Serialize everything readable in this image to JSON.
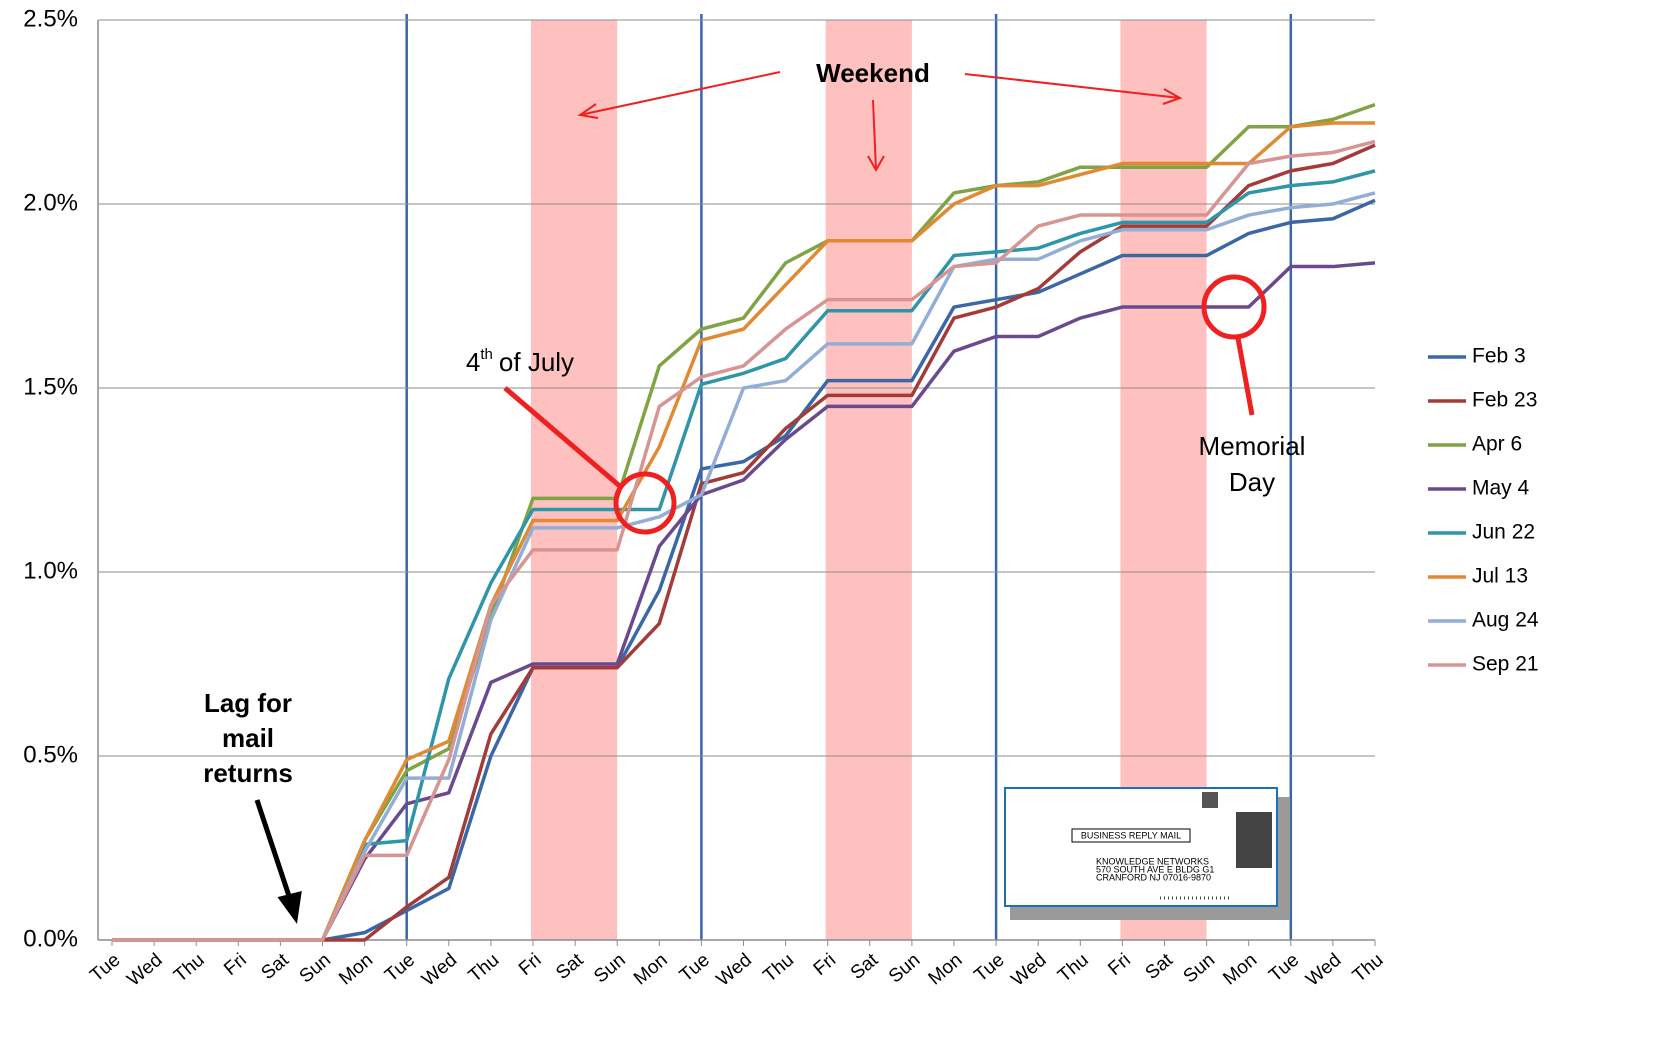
{
  "chart_data": {
    "type": "line",
    "categories": [
      "Tue",
      "Wed",
      "Thu",
      "Fri",
      "Sat",
      "Sun",
      "Mon",
      "Tue",
      "Wed",
      "Thu",
      "Fri",
      "Sat",
      "Sun",
      "Mon",
      "Tue",
      "Wed",
      "Thu",
      "Fri",
      "Sat",
      "Sun",
      "Mon",
      "Tue",
      "Wed",
      "Thu",
      "Fri",
      "Sat",
      "Sun",
      "Mon",
      "Tue",
      "Wed",
      "Thu"
    ],
    "ylim": [
      0,
      2.5
    ],
    "yticks": [
      {
        "value": 0,
        "label": "0.0%"
      },
      {
        "value": 0.5,
        "label": "0.5%"
      },
      {
        "value": 1,
        "label": "1.0%"
      },
      {
        "value": 1.5,
        "label": "1.5%"
      },
      {
        "value": 2,
        "label": "2.0%"
      },
      {
        "value": 2.5,
        "label": "2.5%"
      }
    ],
    "grid": true,
    "legend": "right",
    "series": [
      {
        "name": "Feb 3",
        "color": "#3a67a6",
        "values": [
          0,
          0,
          0,
          0,
          0,
          0,
          0.02,
          0.08,
          0.14,
          0.5,
          0.74,
          0.74,
          0.74,
          0.95,
          1.28,
          1.3,
          1.37,
          1.52,
          1.52,
          1.52,
          1.72,
          1.74,
          1.76,
          1.81,
          1.86,
          1.86,
          1.86,
          1.92,
          1.95,
          1.96,
          2.01
        ]
      },
      {
        "name": "Feb 23",
        "color": "#a33b38",
        "values": [
          0,
          0,
          0,
          0,
          0,
          0,
          0,
          0.09,
          0.17,
          0.56,
          0.74,
          0.74,
          0.74,
          0.86,
          1.24,
          1.27,
          1.39,
          1.48,
          1.48,
          1.48,
          1.69,
          1.72,
          1.77,
          1.87,
          1.94,
          1.94,
          1.94,
          2.05,
          2.09,
          2.11,
          2.16
        ]
      },
      {
        "name": "Apr 6",
        "color": "#80a343",
        "values": [
          0,
          0,
          0,
          0,
          0,
          0,
          0.27,
          0.46,
          0.52,
          0.88,
          1.2,
          1.2,
          1.2,
          1.56,
          1.66,
          1.69,
          1.84,
          1.9,
          1.9,
          1.9,
          2.03,
          2.05,
          2.06,
          2.1,
          2.1,
          2.1,
          2.1,
          2.21,
          2.21,
          2.23,
          2.27
        ]
      },
      {
        "name": "May 4",
        "color": "#6a4a8e",
        "values": [
          0,
          0,
          0,
          0,
          0,
          0,
          0.22,
          0.37,
          0.4,
          0.7,
          0.75,
          0.75,
          0.75,
          1.07,
          1.21,
          1.25,
          1.36,
          1.45,
          1.45,
          1.45,
          1.6,
          1.64,
          1.64,
          1.69,
          1.72,
          1.72,
          1.72,
          1.72,
          1.83,
          1.83,
          1.84
        ]
      },
      {
        "name": "Jun 22",
        "color": "#2f95a8",
        "values": [
          0,
          0,
          0,
          0,
          0,
          0,
          0.26,
          0.27,
          0.71,
          0.97,
          1.17,
          1.17,
          1.17,
          1.17,
          1.51,
          1.54,
          1.58,
          1.71,
          1.71,
          1.71,
          1.86,
          1.87,
          1.88,
          1.92,
          1.95,
          1.95,
          1.95,
          2.03,
          2.05,
          2.06,
          2.09
        ]
      },
      {
        "name": "Jul 13",
        "color": "#e08a35",
        "values": [
          0,
          0,
          0,
          0,
          0,
          0,
          0.27,
          0.49,
          0.54,
          0.91,
          1.14,
          1.14,
          1.14,
          1.34,
          1.63,
          1.66,
          1.78,
          1.9,
          1.9,
          1.9,
          2.0,
          2.05,
          2.05,
          2.08,
          2.11,
          2.11,
          2.11,
          2.11,
          2.21,
          2.22,
          2.22
        ]
      },
      {
        "name": "Aug 24",
        "color": "#93aed6",
        "values": [
          0,
          0,
          0,
          0,
          0,
          0,
          0.24,
          0.44,
          0.44,
          0.87,
          1.12,
          1.12,
          1.12,
          1.15,
          1.21,
          1.5,
          1.52,
          1.62,
          1.62,
          1.62,
          1.83,
          1.85,
          1.85,
          1.9,
          1.93,
          1.93,
          1.93,
          1.97,
          1.99,
          2.0,
          2.03
        ]
      },
      {
        "name": "Sep 21",
        "color": "#d69592",
        "values": [
          0,
          0,
          0,
          0,
          0,
          0,
          0.23,
          0.23,
          0.49,
          0.91,
          1.06,
          1.06,
          1.06,
          1.45,
          1.53,
          1.56,
          1.66,
          1.74,
          1.74,
          1.74,
          1.83,
          1.84,
          1.94,
          1.97,
          1.97,
          1.97,
          1.97,
          2.11,
          2.13,
          2.14,
          2.17
        ]
      }
    ],
    "annotations": {
      "weekend": "Weekend",
      "july_base": "4",
      "july_sup": "th",
      "july_rest": "of July",
      "memorial_1": "Memorial",
      "memorial_2": "Day",
      "lag_1": "Lag for",
      "lag_2": "mail",
      "lag_3": "returns"
    },
    "envelope": {
      "title": "BUSINESS REPLY MAIL",
      "line_1": "KNOWLEDGE NETWORKS",
      "line_2": "570 SOUTH AVE E BLDG G1",
      "line_3": "CRANFORD NJ 07016-9870"
    }
  }
}
